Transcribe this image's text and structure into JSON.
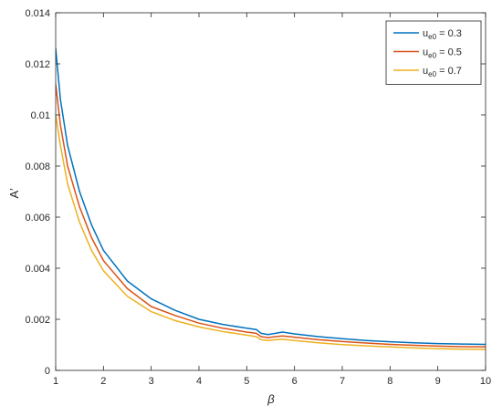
{
  "chart_data": {
    "type": "line",
    "title": "",
    "xlabel": "β",
    "ylabel": "A′",
    "xlim": [
      1,
      10
    ],
    "ylim": [
      0,
      0.014
    ],
    "xticks": [
      1,
      2,
      3,
      4,
      5,
      6,
      7,
      8,
      9,
      10
    ],
    "xtick_labels": [
      "1",
      "2",
      "3",
      "4",
      "5",
      "6",
      "7",
      "8",
      "9",
      "10"
    ],
    "yticks": [
      0,
      0.002,
      0.004,
      0.006,
      0.008,
      0.01,
      0.012,
      0.014
    ],
    "ytick_labels": [
      "0",
      "0.002",
      "0.004",
      "0.006",
      "0.008",
      "0.01",
      "0.012",
      "0.014"
    ],
    "grid": false,
    "box": true,
    "legend": {
      "position": "top-right",
      "boxed": true
    },
    "series": [
      {
        "name": "u_e0 = 0.3",
        "legend_main": "u",
        "legend_sub": "e0",
        "legend_rest": " = 0.3",
        "color": "#0072BD",
        "x": [
          1.0,
          1.1,
          1.25,
          1.5,
          1.75,
          2.0,
          2.5,
          3.0,
          3.5,
          4.0,
          4.5,
          5.0,
          5.2,
          5.3,
          5.45,
          5.6,
          5.75,
          6.0,
          6.5,
          7.0,
          7.5,
          8.0,
          8.5,
          9.0,
          9.5,
          10.0
        ],
        "y": [
          0.0126,
          0.0106,
          0.0088,
          0.007,
          0.0057,
          0.0047,
          0.0035,
          0.0028,
          0.00235,
          0.002,
          0.0018,
          0.00165,
          0.0016,
          0.00145,
          0.0014,
          0.00145,
          0.0015,
          0.00143,
          0.00132,
          0.00124,
          0.00117,
          0.00112,
          0.00108,
          0.00105,
          0.00103,
          0.00102
        ]
      },
      {
        "name": "u_e0 = 0.5",
        "legend_main": "u",
        "legend_sub": "e0",
        "legend_rest": " = 0.5",
        "color": "#D95319",
        "x": [
          1.0,
          1.1,
          1.25,
          1.5,
          1.75,
          2.0,
          2.5,
          3.0,
          3.5,
          4.0,
          4.5,
          5.0,
          5.2,
          5.3,
          5.45,
          5.6,
          5.75,
          6.0,
          6.5,
          7.0,
          7.5,
          8.0,
          8.5,
          9.0,
          9.5,
          10.0
        ],
        "y": [
          0.0112,
          0.0096,
          0.008,
          0.0064,
          0.0052,
          0.0043,
          0.0032,
          0.0025,
          0.00215,
          0.00185,
          0.00165,
          0.0015,
          0.00145,
          0.00132,
          0.00128,
          0.00132,
          0.00135,
          0.0013,
          0.0012,
          0.00113,
          0.00107,
          0.00102,
          0.00098,
          0.00095,
          0.00093,
          0.00092
        ]
      },
      {
        "name": "u_e0 = 0.7",
        "legend_main": "u",
        "legend_sub": "e0",
        "legend_rest": " = 0.7",
        "color": "#EDB120",
        "x": [
          1.0,
          1.1,
          1.25,
          1.5,
          1.75,
          2.0,
          2.5,
          3.0,
          3.5,
          4.0,
          4.5,
          5.0,
          5.2,
          5.3,
          5.45,
          5.6,
          5.75,
          6.0,
          6.5,
          7.0,
          7.5,
          8.0,
          8.5,
          9.0,
          9.5,
          10.0
        ],
        "y": [
          0.01,
          0.0088,
          0.0073,
          0.0058,
          0.0047,
          0.0039,
          0.0029,
          0.0023,
          0.00195,
          0.0017,
          0.00152,
          0.00138,
          0.00132,
          0.0012,
          0.00117,
          0.0012,
          0.00122,
          0.00117,
          0.00108,
          0.00101,
          0.00096,
          0.00092,
          0.00088,
          0.00085,
          0.00083,
          0.00082
        ]
      }
    ]
  }
}
